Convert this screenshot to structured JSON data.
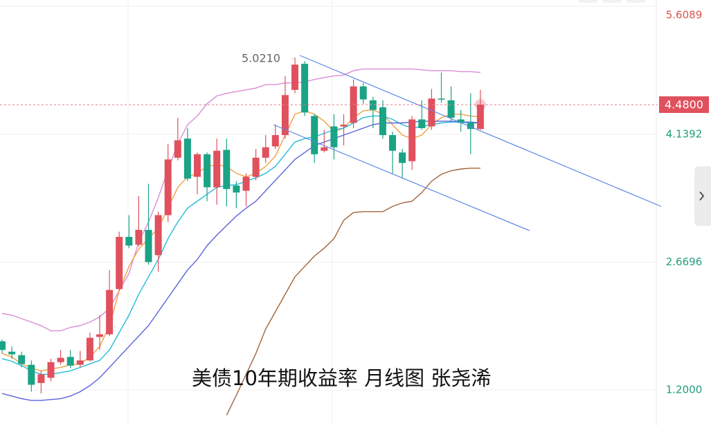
{
  "chart_data": {
    "type": "candlestick",
    "title": "美债10年期收益率 月线图 张尧浠",
    "high_label": "5.0210",
    "ylim": [
      0.786,
      5.683
    ],
    "yticks": [
      5.6089,
      4.1392,
      2.6696,
      {
        "value": 1.2,
        "label": "1.2000"
      }
    ],
    "ytick_colors": [
      "#d9534f",
      "#1f9e7a",
      "#1f9e7a",
      "#1f9e7a"
    ],
    "last_price": {
      "value": 4.48,
      "label": "4.4800"
    },
    "up_color": "#e0505d",
    "down_color": "#1aa385",
    "grid": true,
    "open": [
      1.76,
      1.64,
      1.6,
      1.49,
      1.28,
      1.34,
      1.52,
      1.58,
      1.49,
      1.54,
      1.81,
      1.84,
      2.36,
      2.96,
      2.87,
      3.04,
      2.75,
      3.21,
      3.87,
      4.09,
      3.65,
      3.91,
      3.53,
      3.96,
      3.55,
      3.49,
      3.65,
      3.87,
      4.0,
      4.13,
      4.65,
      4.95,
      4.35,
      3.95,
      4.23,
      4.23,
      4.27,
      4.69,
      4.53,
      4.45,
      4.13,
      3.93,
      3.83,
      4.31,
      4.23,
      4.55,
      4.53,
      4.31,
      4.27,
      4.2
    ],
    "high": [
      1.78,
      1.7,
      1.64,
      1.54,
      1.42,
      1.56,
      1.66,
      1.66,
      1.65,
      1.86,
      2.06,
      2.58,
      3.02,
      3.21,
      3.43,
      3.57,
      3.25,
      4.03,
      4.33,
      4.21,
      3.93,
      3.93,
      4.09,
      4.09,
      3.6,
      3.69,
      3.97,
      4.13,
      4.25,
      4.81,
      5.021,
      4.98,
      4.37,
      4.19,
      4.37,
      4.37,
      4.77,
      4.73,
      4.57,
      4.53,
      4.17,
      3.97,
      4.35,
      4.53,
      4.66,
      4.85,
      4.69,
      4.42,
      4.61,
      4.65
    ],
    "low": [
      1.62,
      1.56,
      1.46,
      1.18,
      1.16,
      1.3,
      1.49,
      1.45,
      1.46,
      1.53,
      1.66,
      1.82,
      2.34,
      2.83,
      2.85,
      2.64,
      2.56,
      3.13,
      3.84,
      3.6,
      3.45,
      3.37,
      3.33,
      3.31,
      3.29,
      3.31,
      3.61,
      3.81,
      3.97,
      4.09,
      4.61,
      4.35,
      3.81,
      3.93,
      3.85,
      4.01,
      4.21,
      4.49,
      4.21,
      4.09,
      3.69,
      3.63,
      3.73,
      4.19,
      4.19,
      4.5,
      4.29,
      4.17,
      3.91,
      4.19
    ],
    "close": [
      1.66,
      1.61,
      1.5,
      1.26,
      1.38,
      1.52,
      1.57,
      1.48,
      1.54,
      1.8,
      1.84,
      2.35,
      2.96,
      2.86,
      3.04,
      2.67,
      3.21,
      3.85,
      4.07,
      3.63,
      3.91,
      3.53,
      3.95,
      3.51,
      3.47,
      3.65,
      3.87,
      3.99,
      4.13,
      4.59,
      4.94,
      4.39,
      3.91,
      3.99,
      3.99,
      4.25,
      4.69,
      4.54,
      4.42,
      4.13,
      3.95,
      3.81,
      4.31,
      4.21,
      4.55,
      4.54,
      4.33,
      4.27,
      4.2,
      4.48
    ],
    "series": [
      {
        "color": "#d98cd6",
        "values": [
          2.08,
          2.06,
          2.02,
          1.98,
          1.94,
          1.88,
          1.88,
          1.92,
          1.94,
          1.98,
          2.04,
          2.14,
          2.34,
          2.54,
          2.9,
          3.13,
          3.41,
          3.73,
          4.03,
          4.25,
          4.35,
          4.49,
          4.58,
          4.61,
          4.63,
          4.65,
          4.67,
          4.71,
          4.71,
          4.73,
          4.73,
          4.74,
          4.77,
          4.79,
          4.81,
          4.82,
          4.87,
          4.89,
          4.89,
          4.89,
          4.89,
          4.89,
          4.89,
          4.88,
          4.87,
          4.87,
          4.87,
          4.86,
          4.86,
          4.85
        ]
      },
      {
        "color": "#f0a040",
        "values": [
          1.62,
          1.58,
          1.5,
          1.45,
          1.42,
          1.44,
          1.46,
          1.49,
          1.5,
          1.58,
          1.7,
          1.94,
          2.34,
          2.62,
          2.82,
          2.94,
          3.06,
          3.29,
          3.53,
          3.65,
          3.69,
          3.77,
          3.79,
          3.77,
          3.69,
          3.65,
          3.69,
          3.77,
          3.89,
          4.13,
          4.37,
          4.41,
          4.37,
          4.29,
          4.17,
          4.21,
          4.33,
          4.41,
          4.42,
          4.37,
          4.25,
          4.13,
          4.09,
          4.13,
          4.25,
          4.33,
          4.37,
          4.37,
          4.35,
          4.34
        ]
      },
      {
        "color": "#22bcd8",
        "values": [
          1.56,
          1.53,
          1.48,
          1.42,
          1.38,
          1.38,
          1.4,
          1.42,
          1.46,
          1.5,
          1.54,
          1.66,
          1.86,
          2.06,
          2.3,
          2.5,
          2.7,
          2.94,
          3.13,
          3.29,
          3.37,
          3.45,
          3.53,
          3.55,
          3.56,
          3.6,
          3.64,
          3.69,
          3.77,
          3.91,
          4.05,
          4.09,
          4.11,
          4.15,
          4.19,
          4.21,
          4.27,
          4.33,
          4.35,
          4.35,
          4.31,
          4.25,
          4.21,
          4.23,
          4.25,
          4.27,
          4.28,
          4.28,
          4.27,
          4.27
        ]
      },
      {
        "color": "#5a62d8",
        "values": [
          1.16,
          1.13,
          1.1,
          1.08,
          1.08,
          1.09,
          1.1,
          1.13,
          1.18,
          1.25,
          1.34,
          1.46,
          1.58,
          1.7,
          1.82,
          1.94,
          2.1,
          2.26,
          2.42,
          2.58,
          2.7,
          2.86,
          2.98,
          3.09,
          3.2,
          3.29,
          3.37,
          3.49,
          3.61,
          3.73,
          3.85,
          3.93,
          4.01,
          4.05,
          4.09,
          4.13,
          4.17,
          4.21,
          4.25,
          4.27,
          4.27,
          4.27,
          4.28,
          4.29,
          4.29,
          4.29,
          4.29,
          4.28,
          4.28,
          4.27
        ]
      },
      {
        "color": "#a0643a",
        "values": [
          null,
          null,
          null,
          null,
          null,
          null,
          null,
          null,
          null,
          null,
          null,
          null,
          null,
          null,
          null,
          null,
          null,
          null,
          null,
          null,
          null,
          null,
          null,
          0.91,
          1.14,
          1.38,
          1.62,
          1.9,
          2.1,
          2.3,
          2.5,
          2.62,
          2.74,
          2.83,
          2.94,
          3.15,
          3.24,
          3.25,
          3.25,
          3.25,
          3.31,
          3.35,
          3.37,
          3.47,
          3.6,
          3.68,
          3.72,
          3.74,
          3.75,
          3.75
        ]
      }
    ]
  }
}
